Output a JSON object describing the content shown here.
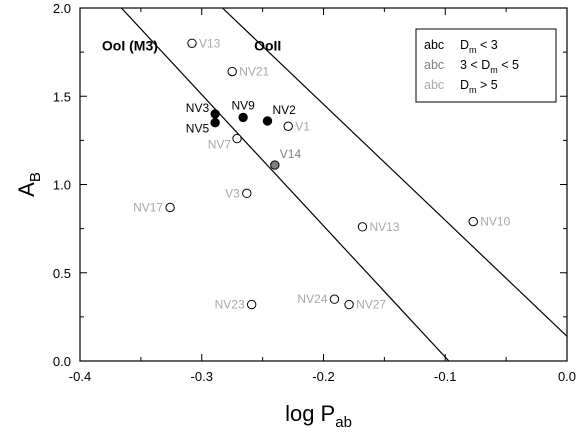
{
  "chart_data": {
    "type": "scatter",
    "title": "",
    "xlabel": {
      "main": "log P",
      "sub": "ab"
    },
    "ylabel": {
      "main": "A",
      "sub": "B"
    },
    "xlim": [
      -0.4,
      0.0
    ],
    "ylim": [
      0.0,
      2.0
    ],
    "xticks": [
      {
        "v": -0.4,
        "label": "-0.4"
      },
      {
        "v": -0.3,
        "label": "-0.3"
      },
      {
        "v": -0.2,
        "label": "-0.2"
      },
      {
        "v": -0.1,
        "label": "-0.1"
      },
      {
        "v": 0.0,
        "label": "0.0"
      }
    ],
    "yticks": [
      {
        "v": 0.0,
        "label": "0.0"
      },
      {
        "v": 0.5,
        "label": "0.5"
      },
      {
        "v": 1.0,
        "label": "1.0"
      },
      {
        "v": 1.5,
        "label": "1.5"
      },
      {
        "v": 2.0,
        "label": "2.0"
      }
    ],
    "colors": {
      "black": "#000000",
      "gray": "#808080",
      "lightgray": "#a8a8a8"
    },
    "points": [
      {
        "name": "V13",
        "x": -0.308,
        "y": 1.8,
        "fill": "open",
        "labelColor": "lightgray",
        "labelPos": "right"
      },
      {
        "name": "NV21",
        "x": -0.275,
        "y": 1.64,
        "fill": "open",
        "labelColor": "lightgray",
        "labelPos": "right"
      },
      {
        "name": "NV3",
        "x": -0.289,
        "y": 1.4,
        "fill": "black",
        "labelColor": "black",
        "labelPos": "left-up"
      },
      {
        "name": "NV5",
        "x": -0.289,
        "y": 1.35,
        "fill": "black",
        "labelColor": "black",
        "labelPos": "left-down"
      },
      {
        "name": "NV9",
        "x": -0.266,
        "y": 1.38,
        "fill": "black",
        "labelColor": "black",
        "labelPos": "up"
      },
      {
        "name": "NV2",
        "x": -0.246,
        "y": 1.36,
        "fill": "black",
        "labelColor": "black",
        "labelPos": "right-up"
      },
      {
        "name": "V1",
        "x": -0.229,
        "y": 1.33,
        "fill": "open",
        "labelColor": "lightgray",
        "labelPos": "right"
      },
      {
        "name": "NV7",
        "x": -0.271,
        "y": 1.26,
        "fill": "open",
        "labelColor": "lightgray",
        "labelPos": "left-down"
      },
      {
        "name": "V14",
        "x": -0.24,
        "y": 1.11,
        "fill": "gray",
        "labelColor": "gray",
        "labelPos": "right-up"
      },
      {
        "name": "V3",
        "x": -0.263,
        "y": 0.95,
        "fill": "open",
        "labelColor": "lightgray",
        "labelPos": "left"
      },
      {
        "name": "NV17",
        "x": -0.326,
        "y": 0.87,
        "fill": "open",
        "labelColor": "lightgray",
        "labelPos": "left"
      },
      {
        "name": "NV13",
        "x": -0.168,
        "y": 0.76,
        "fill": "open",
        "labelColor": "lightgray",
        "labelPos": "right"
      },
      {
        "name": "NV10",
        "x": -0.077,
        "y": 0.79,
        "fill": "open",
        "labelColor": "lightgray",
        "labelPos": "right"
      },
      {
        "name": "NV23",
        "x": -0.259,
        "y": 0.32,
        "fill": "open",
        "labelColor": "lightgray",
        "labelPos": "left"
      },
      {
        "name": "NV24",
        "x": -0.191,
        "y": 0.35,
        "fill": "open",
        "labelColor": "lightgray",
        "labelPos": "left"
      },
      {
        "name": "NV27",
        "x": -0.179,
        "y": 0.32,
        "fill": "open",
        "labelColor": "lightgray",
        "labelPos": "right"
      }
    ],
    "lines": [
      {
        "name": "OoI (M3)",
        "x1": -0.366,
        "y1": 2.0,
        "x2": -0.097,
        "y2": 0.0
      },
      {
        "name": "OoII",
        "x1": -0.283,
        "y1": 2.0,
        "x2": 0.0,
        "y2": 0.14
      }
    ],
    "region_labels": [
      {
        "text": "OoI (M3)",
        "x": -0.382,
        "y": 1.76
      },
      {
        "text": "OoII",
        "x": -0.257,
        "y": 1.76
      }
    ],
    "legend": {
      "position": "top-right",
      "entries": [
        {
          "sample": "abc",
          "color": "black",
          "main": "D",
          "sub": "m",
          "rest": " < 3"
        },
        {
          "sample": "abc",
          "color": "gray",
          "pre": "3 < ",
          "main": "D",
          "sub": "m",
          "rest": " < 5"
        },
        {
          "sample": "abc",
          "color": "lightgray",
          "main": "D",
          "sub": "m",
          "rest": " > 5"
        }
      ]
    }
  }
}
